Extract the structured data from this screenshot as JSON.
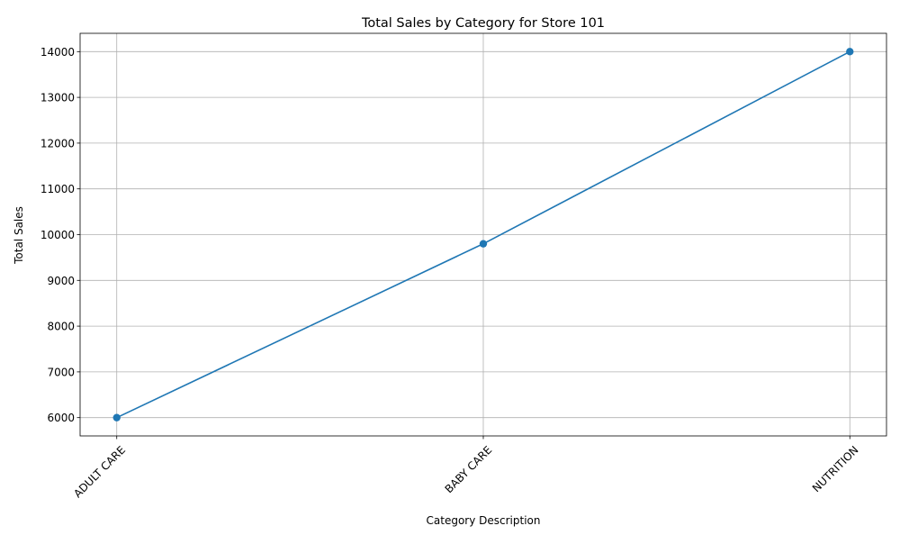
{
  "chart_data": {
    "type": "line",
    "title": "Total Sales by Category for Store 101",
    "xlabel": "Category Description",
    "ylabel": "Total Sales",
    "categories": [
      "ADULT CARE",
      "BABY CARE",
      "NUTRITION"
    ],
    "series": [
      {
        "values": [
          6000,
          9800,
          14000
        ],
        "color": "#1f77b4",
        "marker": "circle"
      }
    ],
    "ylim": [
      5600,
      14400
    ],
    "yticks": [
      6000,
      7000,
      8000,
      9000,
      10000,
      11000,
      12000,
      13000,
      14000
    ],
    "grid": true,
    "legend": "none",
    "xtick_rotation_deg": 45
  }
}
